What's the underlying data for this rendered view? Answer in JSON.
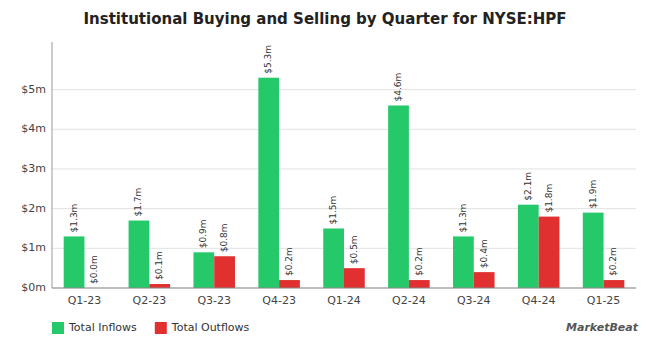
{
  "chart_data": {
    "type": "bar",
    "title": "Institutional Buying and Selling by Quarter for NYSE:HPF",
    "categories": [
      "Q1-23",
      "Q2-23",
      "Q3-23",
      "Q4-23",
      "Q1-24",
      "Q2-24",
      "Q3-24",
      "Q4-24",
      "Q1-25"
    ],
    "series": [
      {
        "name": "Total Inflows",
        "color": "#26c96a",
        "values": [
          1.3,
          1.7,
          0.9,
          5.3,
          1.5,
          4.6,
          1.3,
          2.1,
          1.9
        ],
        "value_labels": [
          "$1.3m",
          "$1.7m",
          "$0.9m",
          "$5.3m",
          "$1.5m",
          "$4.6m",
          "$1.3m",
          "$2.1m",
          "$1.9m"
        ]
      },
      {
        "name": "Total Outflows",
        "color": "#e03030",
        "values": [
          0.0,
          0.1,
          0.8,
          0.2,
          0.5,
          0.2,
          0.4,
          1.8,
          0.2
        ],
        "value_labels": [
          "$0.0m",
          "$0.1m",
          "$0.8m",
          "$0.2m",
          "$0.5m",
          "$0.2m",
          "$0.4m",
          "$1.8m",
          "$0.2m"
        ]
      }
    ],
    "ylim": [
      0,
      6.2
    ],
    "yticks": [
      {
        "value": 0,
        "label": "$0m"
      },
      {
        "value": 1,
        "label": "$1m"
      },
      {
        "value": 2,
        "label": "$2m"
      },
      {
        "value": 3,
        "label": "$3m"
      },
      {
        "value": 4,
        "label": "$4m"
      },
      {
        "value": 5,
        "label": "$5m"
      }
    ],
    "grid": true,
    "data_labels": true,
    "legend": "bottom-left",
    "annotations": [
      "MarketBeat"
    ]
  }
}
